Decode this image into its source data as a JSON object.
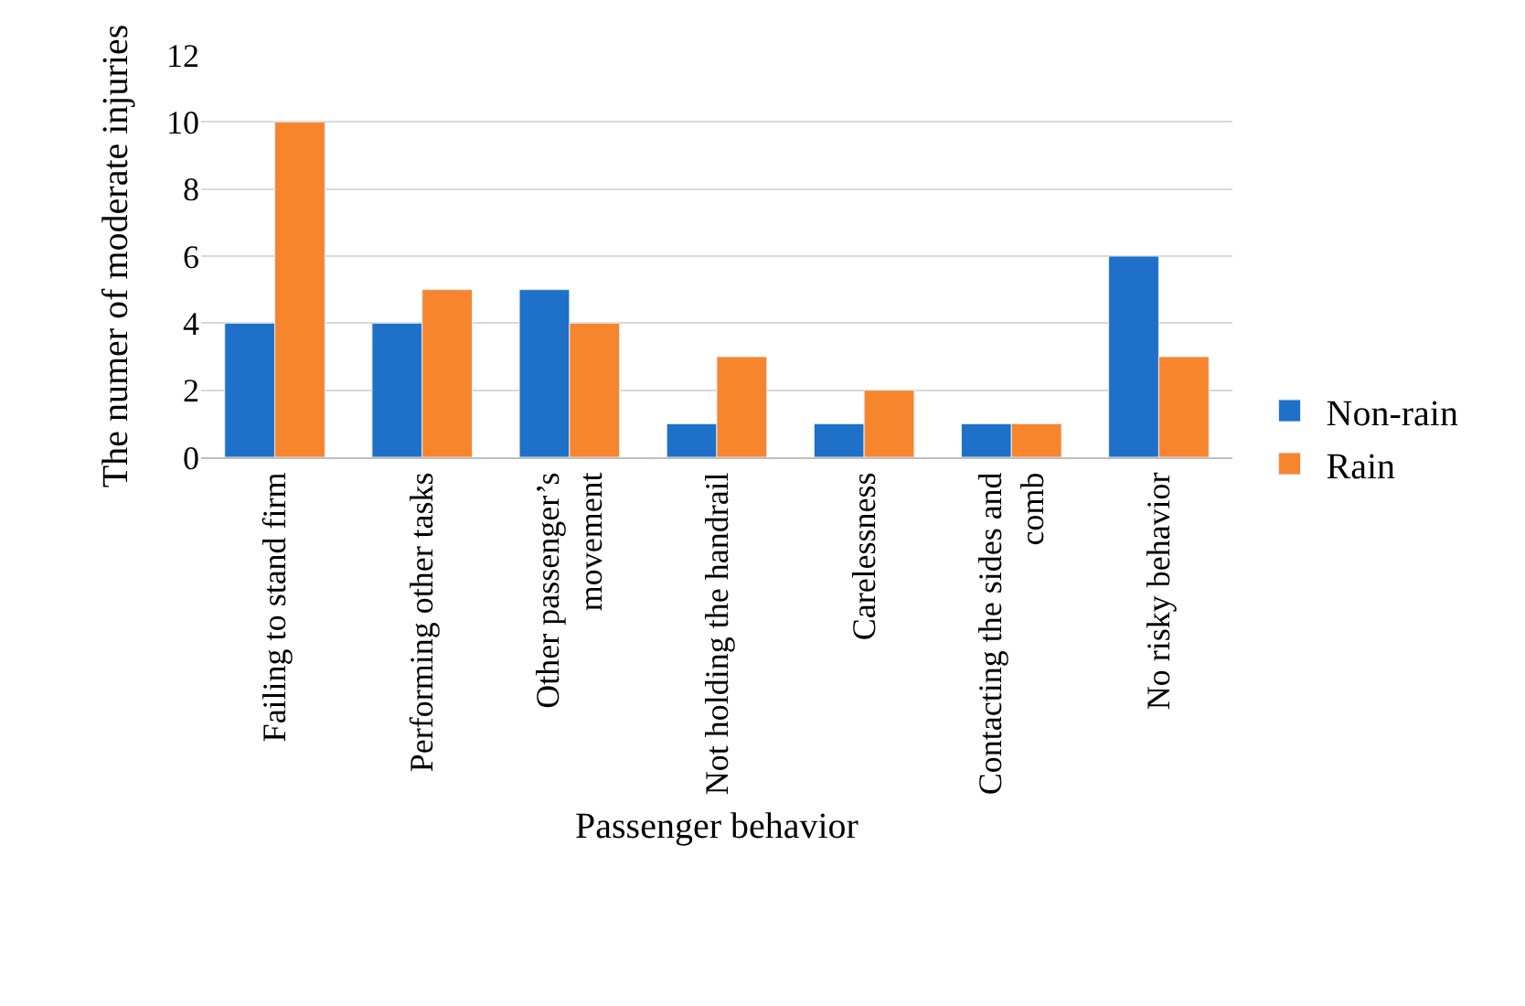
{
  "chart_data": {
    "type": "bar",
    "xlabel": "Passenger behavior",
    "ylabel": "The numer of moderate injuries",
    "categories": [
      "Failing to stand firm",
      "Performing other tasks",
      "Other passenger’s movement",
      "Not holding the handrail",
      "Carelessness",
      "Contacting the sides and comb",
      "No risky behavior"
    ],
    "series": [
      {
        "name": "Non-rain",
        "color": "#1f70c8",
        "values": [
          4,
          4,
          5,
          1,
          1,
          1,
          6
        ]
      },
      {
        "name": "Rain",
        "color": "#f7852d",
        "values": [
          10,
          5,
          4,
          3,
          2,
          1,
          3
        ]
      }
    ],
    "ylim": [
      0,
      12
    ],
    "yticks": [
      0,
      2,
      4,
      6,
      8,
      10,
      12
    ],
    "grid": "y",
    "legend": "right"
  }
}
